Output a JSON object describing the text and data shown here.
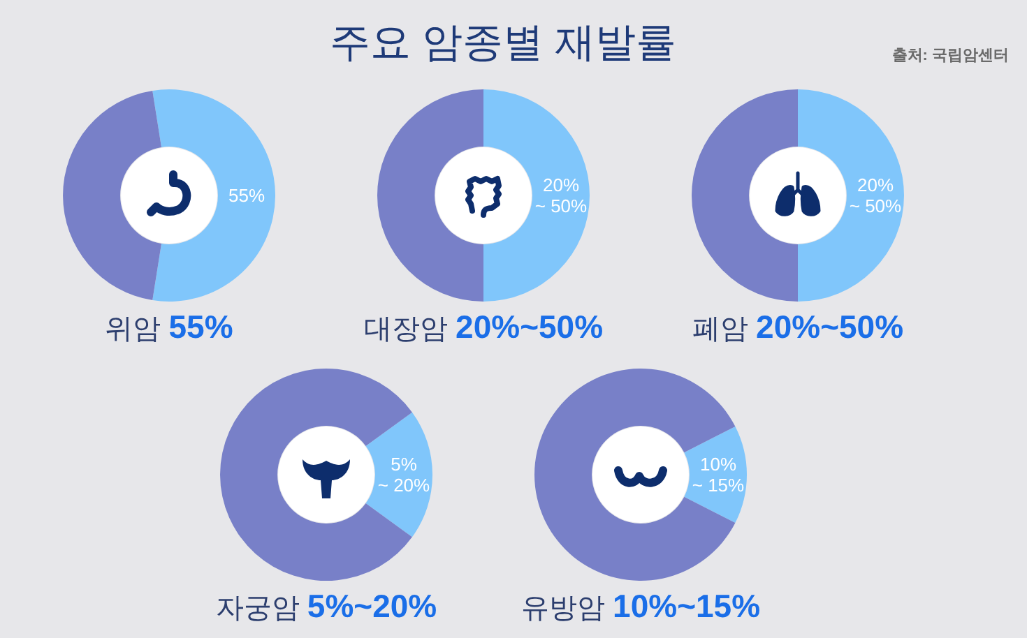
{
  "chart_data": [
    {
      "type": "other",
      "title": "주요 암종별 재발률",
      "annotations": [
        "출처: 국립암센터"
      ]
    },
    {
      "type": "donut",
      "title": "위암 **55%**",
      "categories": [
        null,
        null
      ],
      "values": [
        55,
        45
      ],
      "colors": [
        "#80c6fb",
        "#7880c8"
      ],
      "value_labels": [
        "55%",
        null
      ]
    },
    {
      "type": "donut",
      "title": "대장암 **20%~50%**",
      "categories": [
        null,
        null
      ],
      "values": [
        50,
        50
      ],
      "colors": [
        "#80c6fb",
        "#7880c8"
      ],
      "value_labels": [
        "20%\n~ 50%",
        null
      ]
    },
    {
      "type": "donut",
      "title": "폐암 **20%~50%**",
      "categories": [
        null,
        null
      ],
      "values": [
        50,
        50
      ],
      "colors": [
        "#80c6fb",
        "#7880c8"
      ],
      "value_labels": [
        "20%\n~ 50%",
        null
      ]
    },
    {
      "type": "donut",
      "title": "자궁암 **5%~20%**",
      "categories": [
        null,
        null
      ],
      "values": [
        20,
        80
      ],
      "colors": [
        "#80c6fb",
        "#7880c8"
      ],
      "value_labels": [
        "5%\n~ 20%",
        null
      ]
    },
    {
      "type": "donut",
      "title": "유방암 **10%~15%**",
      "categories": [
        null,
        null
      ],
      "values": [
        15,
        85
      ],
      "colors": [
        "#80c6fb",
        "#7880c8"
      ],
      "value_labels": [
        "10%\n~ 15%",
        null
      ]
    }
  ]
}
